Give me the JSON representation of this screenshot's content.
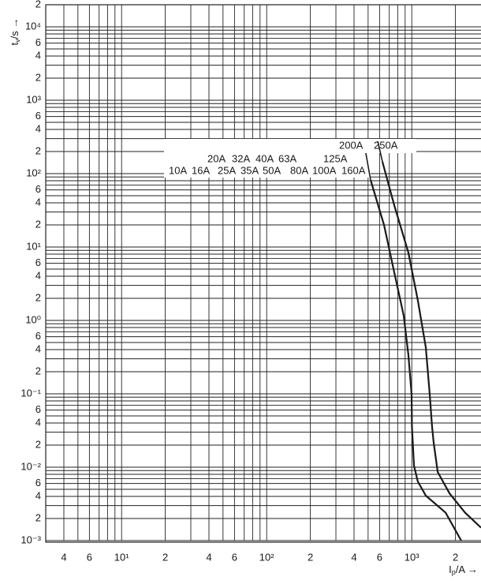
{
  "chart_data": {
    "type": "line",
    "y_label": {
      "symbol": "t",
      "subscript": "v",
      "unit": "/s →"
    },
    "x_label": {
      "symbol": "I",
      "subscript": "p",
      "unit": "/A →"
    },
    "log_x": true,
    "log_y": true,
    "grid": true,
    "xlim": [
      3,
      3000
    ],
    "ylim": [
      0.001,
      20000
    ],
    "xticks": [
      4,
      6,
      {
        "value": 10,
        "label": "10¹"
      },
      {
        "value": 20,
        "label": "2"
      },
      {
        "value": 40,
        "label": "4"
      },
      {
        "value": 60,
        "label": "6"
      },
      {
        "value": 100,
        "label": "10²"
      },
      {
        "value": 200,
        "label": "2"
      },
      {
        "value": 400,
        "label": "4"
      },
      {
        "value": 600,
        "label": "6"
      },
      {
        "value": 1000,
        "label": "10³"
      },
      {
        "value": 2000,
        "label": "2"
      }
    ],
    "x_minor_ticks": [
      5,
      7,
      8,
      9,
      30,
      50,
      70,
      80,
      90,
      300,
      500,
      700,
      800,
      900
    ],
    "yticks": [
      {
        "value": 20000,
        "label": "2"
      },
      {
        "value": 10000,
        "label": "10⁴"
      },
      {
        "value": 6000,
        "label": "6"
      },
      {
        "value": 4000,
        "label": "4"
      },
      {
        "value": 2000,
        "label": "2"
      },
      {
        "value": 1000,
        "label": "10³"
      },
      {
        "value": 600,
        "label": "6"
      },
      {
        "value": 400,
        "label": "4"
      },
      {
        "value": 200,
        "label": "2"
      },
      {
        "value": 100,
        "label": "10²"
      },
      {
        "value": 60,
        "label": "6"
      },
      {
        "value": 40,
        "label": "4"
      },
      {
        "value": 20,
        "label": "2"
      },
      {
        "value": 10,
        "label": "10¹"
      },
      6,
      4,
      2,
      {
        "value": 1,
        "label": "10⁰"
      },
      {
        "value": 0.6,
        "label": "6"
      },
      {
        "value": 0.4,
        "label": "4"
      },
      {
        "value": 0.2,
        "label": "2"
      },
      {
        "value": 0.1,
        "label": "10⁻¹"
      },
      {
        "value": 0.06,
        "label": "6"
      },
      {
        "value": 0.04,
        "label": "4"
      },
      {
        "value": 0.02,
        "label": "2"
      },
      {
        "value": 0.01,
        "label": "10⁻²"
      },
      {
        "value": 0.006,
        "label": "6"
      },
      {
        "value": 0.004,
        "label": "4"
      },
      {
        "value": 0.002,
        "label": "2"
      },
      {
        "value": 0.001,
        "label": "10⁻³"
      }
    ],
    "y_minor_ticks": [
      9000,
      8000,
      7000,
      5000,
      3000,
      900,
      800,
      700,
      500,
      300,
      90,
      80,
      70,
      50,
      30,
      9,
      8,
      7,
      5,
      3,
      0.9,
      0.8,
      0.7,
      0.5,
      0.3,
      0.09,
      0.08,
      0.07,
      0.05,
      0.03,
      0.009,
      0.008,
      0.007,
      0.005,
      0.003
    ],
    "rating_rows": [
      [
        "200A",
        "250A"
      ],
      [
        "20A",
        "32A",
        "40A",
        "63A",
        "125A"
      ],
      [
        "10A",
        "16A",
        "25A",
        "35A",
        "50A",
        "80A",
        "100A",
        "160A"
      ]
    ],
    "series": [
      {
        "color": "#1a1a1a",
        "x": [
          520,
          644,
          757,
          880,
          948,
          998,
          1003,
          1035,
          1100,
          1250,
          1710,
          2190
        ],
        "values": [
          82,
          20,
          4.5,
          1.16,
          0.34,
          0.098,
          0.036,
          0.0105,
          0.0064,
          0.0041,
          0.0024,
          0.001
        ]
      },
      {
        "color": "#1a1a1a",
        "x": [
          628,
          757,
          948,
          1100,
          1250,
          1330,
          1380,
          1415,
          1510,
          1820,
          2330,
          3000
        ],
        "values": [
          145,
          37,
          8.4,
          1.9,
          0.43,
          0.098,
          0.036,
          0.022,
          0.0086,
          0.0044,
          0.0024,
          0.0015
        ]
      }
    ]
  }
}
